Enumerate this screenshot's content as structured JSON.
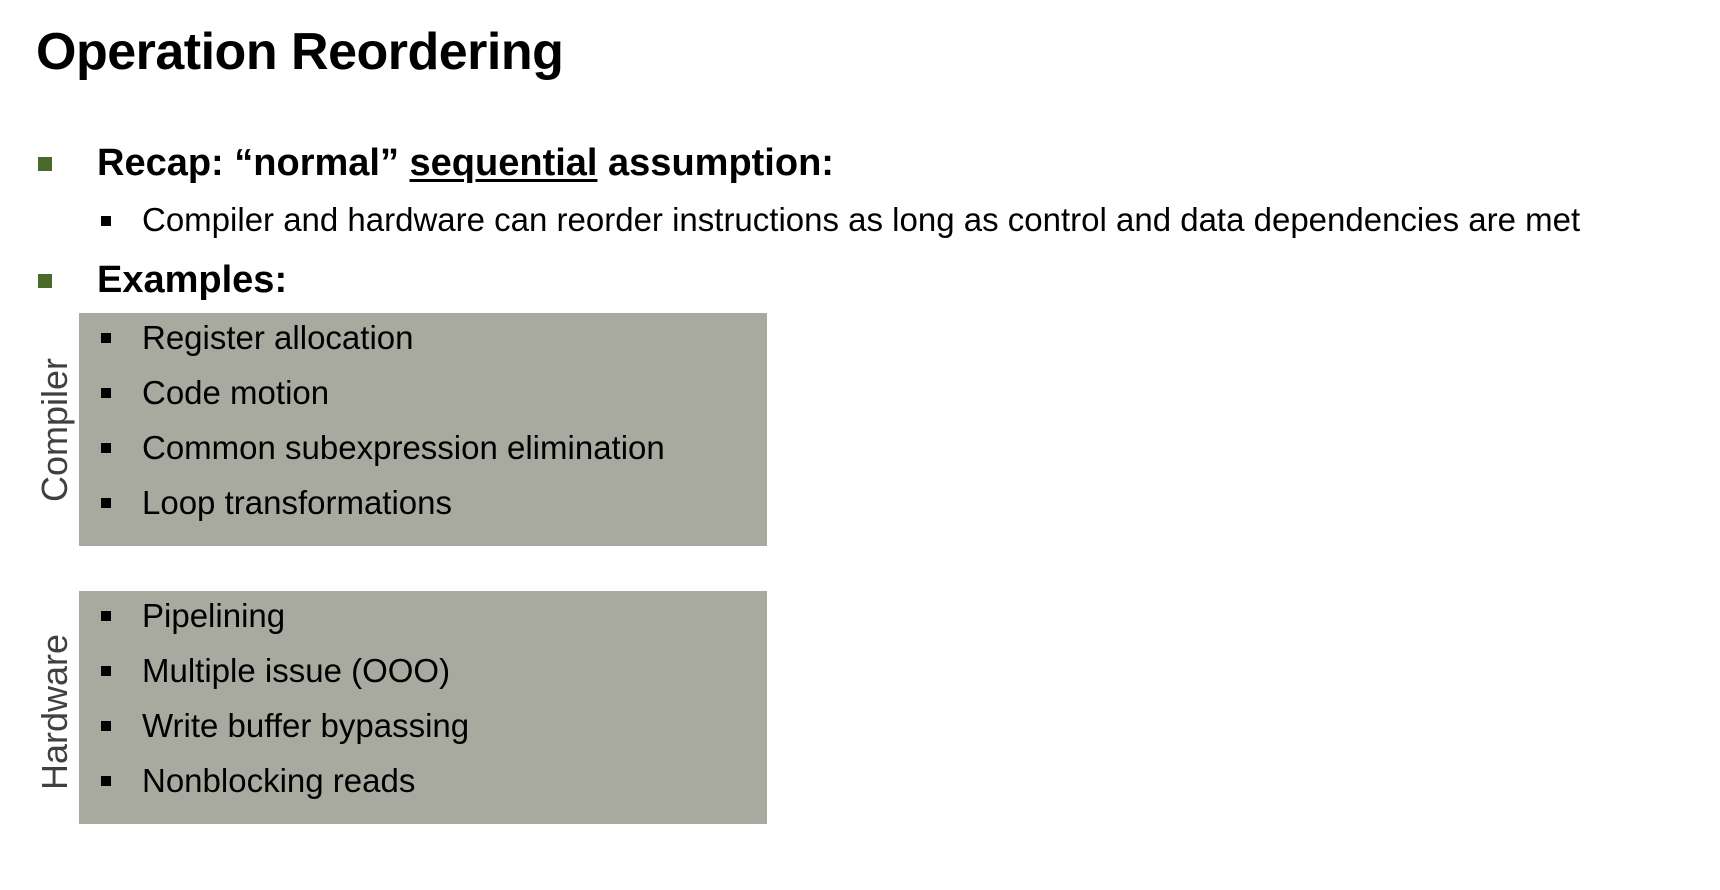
{
  "slide": {
    "title": "Operation Reordering",
    "recap": {
      "prefix": "Recap: “normal” ",
      "underlined": "sequential",
      "suffix": " assumption:",
      "detail": "Compiler and hardware can reorder instructions as long as control and data dependencies are met"
    },
    "examples": {
      "heading": "Examples:",
      "groups": [
        {
          "label": "Compiler",
          "items": [
            "Register allocation",
            "Code motion",
            "Common subexpression elimination",
            "Loop transformations"
          ]
        },
        {
          "label": "Hardware",
          "items": [
            "Pipelining",
            "Multiple issue (OOO)",
            "Write buffer bypassing",
            "Nonblocking reads"
          ]
        }
      ]
    },
    "colors": {
      "level1_bullet": "#4a6a2a",
      "box_background": "#a8a99f",
      "side_label": "#404040"
    }
  }
}
